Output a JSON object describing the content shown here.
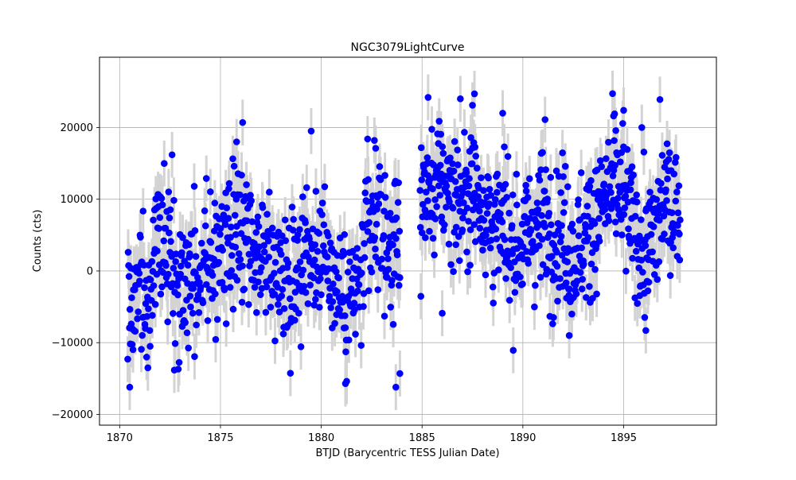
{
  "chart_data": {
    "type": "scatter",
    "title": "NGC3079LightCurve",
    "xlabel": "BTJD (Barycentric TESS Julian Date)",
    "ylabel": "Counts (cts)",
    "xlim": [
      1869,
      1899.6
    ],
    "ylim": [
      -21500,
      29800
    ],
    "x_ticks": [
      {
        "value": 1870,
        "label": "1870"
      },
      {
        "value": 1875,
        "label": "1875"
      },
      {
        "value": 1880,
        "label": "1880"
      },
      {
        "value": 1885,
        "label": "1885"
      },
      {
        "value": 1890,
        "label": "1890"
      },
      {
        "value": 1895,
        "label": "1895"
      }
    ],
    "y_ticks": [
      {
        "value": -20000,
        "label": "−20000"
      },
      {
        "value": -10000,
        "label": "−10000"
      },
      {
        "value": 0,
        "label": "0"
      },
      {
        "value": 10000,
        "label": "10000"
      },
      {
        "value": 20000,
        "label": "20000"
      }
    ],
    "grid": true,
    "marker_color": "#0000ff",
    "errorbar_color": "#d3d3d3",
    "error_halfwidth": 3200,
    "segments": [
      {
        "x_start": 1870.4,
        "x_end": 1883.9,
        "count": 620
      },
      {
        "x_start": 1884.9,
        "x_end": 1897.8,
        "count": 640
      }
    ],
    "trend": [
      [
        1870.4,
        -5000
      ],
      [
        1871.0,
        -2500
      ],
      [
        1871.6,
        -3000
      ],
      [
        1872.0,
        2500
      ],
      [
        1872.4,
        5000
      ],
      [
        1872.8,
        -2000
      ],
      [
        1873.3,
        -1000
      ],
      [
        1873.8,
        0
      ],
      [
        1874.3,
        500
      ],
      [
        1874.8,
        1500
      ],
      [
        1875.3,
        3000
      ],
      [
        1875.8,
        5500
      ],
      [
        1876.3,
        3000
      ],
      [
        1876.8,
        0
      ],
      [
        1877.3,
        2500
      ],
      [
        1877.8,
        -500
      ],
      [
        1878.3,
        -1000
      ],
      [
        1878.8,
        1500
      ],
      [
        1879.3,
        3500
      ],
      [
        1879.8,
        2500
      ],
      [
        1880.3,
        2000
      ],
      [
        1880.8,
        -2000
      ],
      [
        1881.3,
        -3500
      ],
      [
        1881.8,
        -3000
      ],
      [
        1882.3,
        3500
      ],
      [
        1882.8,
        7500
      ],
      [
        1883.3,
        3000
      ],
      [
        1883.9,
        4000
      ],
      [
        1884.9,
        10000
      ],
      [
        1885.5,
        11000
      ],
      [
        1886.0,
        12500
      ],
      [
        1886.5,
        11000
      ],
      [
        1887.0,
        9000
      ],
      [
        1887.5,
        12000
      ],
      [
        1888.0,
        9500
      ],
      [
        1888.5,
        6000
      ],
      [
        1889.0,
        5500
      ],
      [
        1889.5,
        3500
      ],
      [
        1890.0,
        4000
      ],
      [
        1890.5,
        6000
      ],
      [
        1891.0,
        7500
      ],
      [
        1891.5,
        5000
      ],
      [
        1892.0,
        6000
      ],
      [
        1892.5,
        1500
      ],
      [
        1893.0,
        4000
      ],
      [
        1893.5,
        7000
      ],
      [
        1894.0,
        9500
      ],
      [
        1894.5,
        12000
      ],
      [
        1895.0,
        10000
      ],
      [
        1895.5,
        6000
      ],
      [
        1896.0,
        2500
      ],
      [
        1896.5,
        4500
      ],
      [
        1897.0,
        10000
      ],
      [
        1897.8,
        8500
      ]
    ],
    "scatter_spread": 8500,
    "outliers": [
      {
        "x": 1870.5,
        "y": -16200
      },
      {
        "x": 1871.4,
        "y": -13500
      },
      {
        "x": 1872.6,
        "y": 16200
      },
      {
        "x": 1873.7,
        "y": 11800
      },
      {
        "x": 1874.3,
        "y": 12900
      },
      {
        "x": 1876.1,
        "y": 20700
      },
      {
        "x": 1875.8,
        "y": 18000
      },
      {
        "x": 1879.5,
        "y": 19500
      },
      {
        "x": 1881.2,
        "y": -15700
      },
      {
        "x": 1882.3,
        "y": 18400
      },
      {
        "x": 1882.7,
        "y": 17100
      },
      {
        "x": 1883.7,
        "y": -16200
      },
      {
        "x": 1883.9,
        "y": -14300
      },
      {
        "x": 1885.3,
        "y": 24200
      },
      {
        "x": 1886.9,
        "y": 24000
      },
      {
        "x": 1887.6,
        "y": 24700
      },
      {
        "x": 1887.5,
        "y": 23100
      },
      {
        "x": 1889.0,
        "y": 22000
      },
      {
        "x": 1891.1,
        "y": 21100
      },
      {
        "x": 1894.5,
        "y": 21600
      },
      {
        "x": 1895.0,
        "y": 22400
      },
      {
        "x": 1896.8,
        "y": 23900
      },
      {
        "x": 1886.0,
        "y": -5900
      },
      {
        "x": 1892.3,
        "y": -9000
      },
      {
        "x": 1895.9,
        "y": 20000
      },
      {
        "x": 1896.1,
        "y": -8300
      }
    ]
  }
}
